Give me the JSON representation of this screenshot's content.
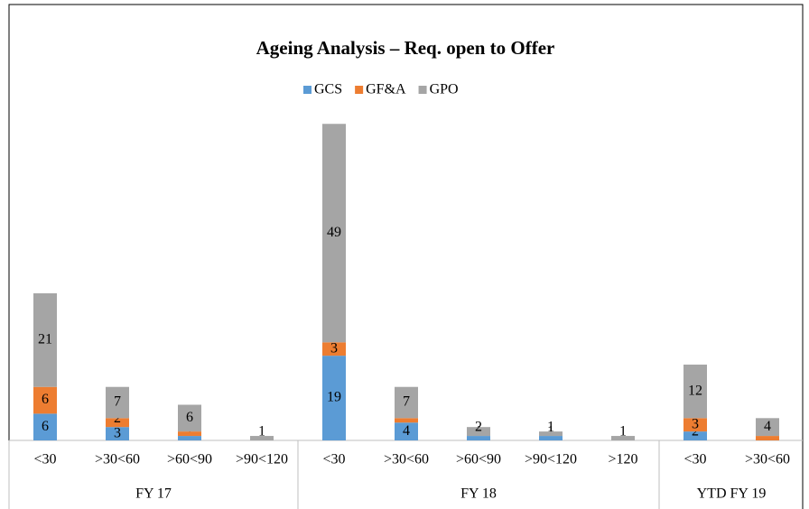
{
  "chart_data": {
    "type": "stacked_bar",
    "title": "Ageing Analysis – Req. open to Offer",
    "groups": [
      {
        "name": "FY 17",
        "categories": [
          "<30",
          ">30<60",
          ">60<90",
          ">90<120"
        ]
      },
      {
        "name": "FY 18",
        "categories": [
          "<30",
          ">30<60",
          ">60<90",
          ">90<120",
          ">120"
        ]
      },
      {
        "name": "YTD FY 19",
        "categories": [
          "<30",
          ">30<60"
        ]
      }
    ],
    "series": [
      {
        "name": "GCS",
        "color": "#5b9bd5",
        "values": [
          6,
          3,
          1,
          null,
          19,
          4,
          1,
          1,
          null,
          2,
          null
        ]
      },
      {
        "name": "GF&A",
        "color": "#ed7d31",
        "values": [
          6,
          2,
          1,
          null,
          3,
          1,
          null,
          null,
          null,
          3,
          1
        ]
      },
      {
        "name": "GPO",
        "color": "#a5a5a5",
        "values": [
          21,
          7,
          6,
          1,
          49,
          7,
          2,
          1,
          1,
          12,
          4
        ]
      }
    ],
    "legend": "top"
  }
}
